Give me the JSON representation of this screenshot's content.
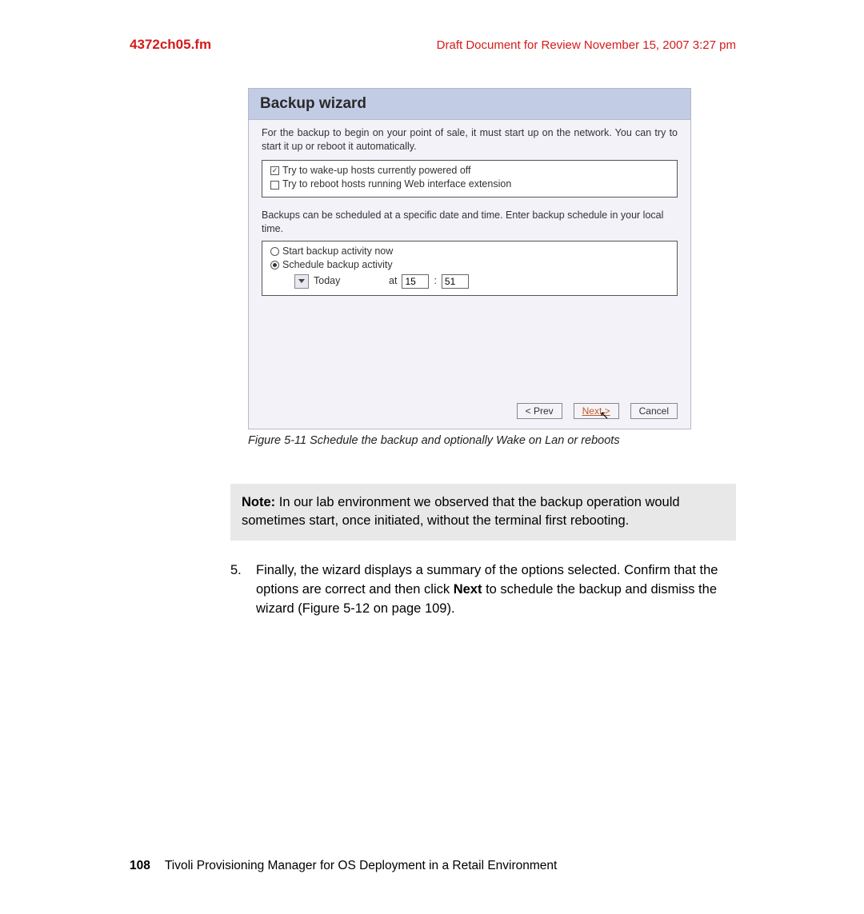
{
  "header": {
    "filename": "4372ch05.fm",
    "draft": "Draft Document for Review November 15, 2007 3:27 pm"
  },
  "wizard": {
    "title": "Backup wizard",
    "intro": "For the backup to begin on your point of sale, it must start up on the network. You can try to start it up or reboot it automatically.",
    "wake_label": "Try to wake-up hosts currently powered off",
    "reboot_label": "Try to reboot hosts running Web interface extension",
    "sched_intro": "Backups can be scheduled at a specific date and time. Enter backup schedule in your local time.",
    "start_now_label": "Start backup activity now",
    "schedule_label": "Schedule backup activity",
    "date_value": "Today",
    "at_label": "at",
    "hour": "15",
    "minute": "51",
    "colon": ":",
    "prev": "< Prev",
    "next": "Next >",
    "cancel": "Cancel",
    "wake_checked": true,
    "reboot_checked": false,
    "start_now_selected": false,
    "schedule_selected": true
  },
  "caption": {
    "label": "Figure 5-11   Schedule the backup and optionally Wake on Lan or reboots"
  },
  "note": {
    "prefix": "Note:",
    "body": " In our lab environment we observed that the backup operation would sometimes start, once initiated, without the terminal first rebooting."
  },
  "step": {
    "num": "5.",
    "part1": "Finally, the wizard displays a summary of the options selected. Confirm that the options are correct and then click ",
    "bold": "Next",
    "part2": " to schedule the backup and dismiss the wizard (Figure 5-12 on page 109)."
  },
  "footer": {
    "page": "108",
    "title": "Tivoli Provisioning Manager for OS Deployment in a Retail Environment"
  },
  "colors": {
    "red": "#d61a1a",
    "header_bg": "#c3cce5",
    "panel_bg": "#f3f2f9",
    "note_bg": "#e8e8e8"
  }
}
